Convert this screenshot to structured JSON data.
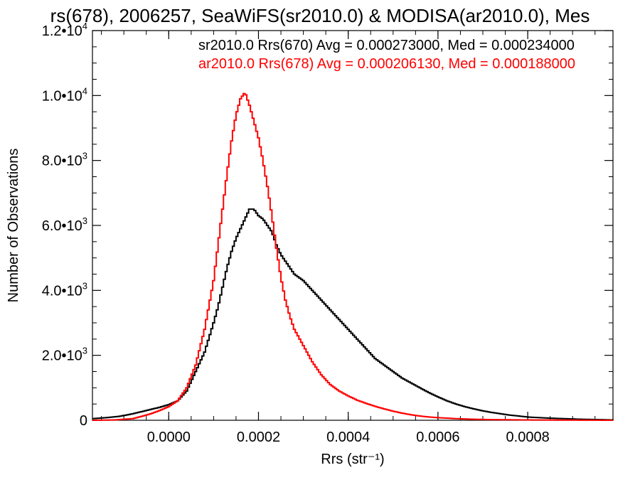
{
  "chart_data": {
    "type": "line",
    "title": "rs(678), 2006257, SeaWiFS(sr2010.0) & MODISA(ar2010.0), Mes",
    "xlabel": "Rrs (str⁻¹)",
    "ylabel": "Number of Observations",
    "xlim": [
      -0.00017,
      0.00099
    ],
    "ylim": [
      0,
      12000
    ],
    "x_ticks": [
      {
        "value": 0.0,
        "label": "0.0000"
      },
      {
        "value": 0.0002,
        "label": "0.0002"
      },
      {
        "value": 0.0004,
        "label": "0.0004"
      },
      {
        "value": 0.0006,
        "label": "0.0006"
      },
      {
        "value": 0.0008,
        "label": "0.0008"
      }
    ],
    "y_ticks": [
      {
        "value": 0,
        "mantissa": "0",
        "exp": ""
      },
      {
        "value": 2000,
        "mantissa": "2.0•10",
        "exp": "3"
      },
      {
        "value": 4000,
        "mantissa": "4.0•10",
        "exp": "3"
      },
      {
        "value": 6000,
        "mantissa": "6.0•10",
        "exp": "3"
      },
      {
        "value": 8000,
        "mantissa": "8.0•10",
        "exp": "3"
      },
      {
        "value": 10000,
        "mantissa": "1.0•10",
        "exp": "4"
      },
      {
        "value": 12000,
        "mantissa": "1.2•10",
        "exp": "4"
      }
    ],
    "legend": [
      {
        "text": "sr2010.0 Rrs(670) Avg = 0.000273000, Med = 0.000234000",
        "color": "#000000"
      },
      {
        "text": "ar2010.0 Rrs(678) Avg = 0.000206130, Med = 0.000188000",
        "color": "#ff0000"
      }
    ],
    "legend_placement": "top-right",
    "series": [
      {
        "color": "#000000",
        "style": "step",
        "points": [
          [
            -0.00017,
            50
          ],
          [
            -0.00014,
            80
          ],
          [
            -0.00011,
            120
          ],
          [
            -8e-05,
            200
          ],
          [
            -5e-05,
            300
          ],
          [
            -2e-05,
            400
          ],
          [
            0.0,
            480
          ],
          [
            2e-05,
            600
          ],
          [
            4e-05,
            900
          ],
          [
            6e-05,
            1500
          ],
          [
            8e-05,
            2100
          ],
          [
            0.0001,
            3000
          ],
          [
            0.00011,
            3500
          ],
          [
            0.00012,
            4100
          ],
          [
            0.00013,
            4700
          ],
          [
            0.00014,
            5200
          ],
          [
            0.00015,
            5600
          ],
          [
            0.00016,
            5900
          ],
          [
            0.00017,
            6200
          ],
          [
            0.00018,
            6500
          ],
          [
            0.00019,
            6500
          ],
          [
            0.0002,
            6300
          ],
          [
            0.00021,
            6200
          ],
          [
            0.00022,
            6000
          ],
          [
            0.00023,
            5800
          ],
          [
            0.00024,
            5400
          ],
          [
            0.00025,
            5100
          ],
          [
            0.00026,
            4900
          ],
          [
            0.00027,
            4700
          ],
          [
            0.00028,
            4500
          ],
          [
            0.0003,
            4300
          ],
          [
            0.00032,
            4000
          ],
          [
            0.00034,
            3700
          ],
          [
            0.00036,
            3400
          ],
          [
            0.00038,
            3100
          ],
          [
            0.0004,
            2800
          ],
          [
            0.00042,
            2500
          ],
          [
            0.00044,
            2200
          ],
          [
            0.00046,
            1900
          ],
          [
            0.00048,
            1700
          ],
          [
            0.0005,
            1500
          ],
          [
            0.00052,
            1300
          ],
          [
            0.00054,
            1150
          ],
          [
            0.00056,
            1000
          ],
          [
            0.00058,
            850
          ],
          [
            0.0006,
            720
          ],
          [
            0.00062,
            600
          ],
          [
            0.00064,
            500
          ],
          [
            0.00066,
            420
          ],
          [
            0.00068,
            350
          ],
          [
            0.0007,
            290
          ],
          [
            0.00072,
            240
          ],
          [
            0.00074,
            200
          ],
          [
            0.00076,
            160
          ],
          [
            0.00078,
            130
          ],
          [
            0.0008,
            100
          ],
          [
            0.00084,
            70
          ],
          [
            0.00088,
            50
          ],
          [
            0.00092,
            30
          ],
          [
            0.00096,
            20
          ],
          [
            0.00099,
            10
          ]
        ]
      },
      {
        "color": "#ff0000",
        "style": "step",
        "points": [
          [
            -0.00017,
            0
          ],
          [
            -0.00012,
            10
          ],
          [
            -8e-05,
            50
          ],
          [
            -6e-05,
            120
          ],
          [
            -4e-05,
            200
          ],
          [
            -2e-05,
            300
          ],
          [
            0.0,
            420
          ],
          [
            2e-05,
            600
          ],
          [
            4e-05,
            1000
          ],
          [
            6e-05,
            1700
          ],
          [
            8e-05,
            2800
          ],
          [
            0.0001,
            4300
          ],
          [
            0.00011,
            5400
          ],
          [
            0.00012,
            6500
          ],
          [
            0.00013,
            7600
          ],
          [
            0.00014,
            8600
          ],
          [
            0.00015,
            9400
          ],
          [
            0.00016,
            9900
          ],
          [
            0.00017,
            10100
          ],
          [
            0.00018,
            9700
          ],
          [
            0.00019,
            9200
          ],
          [
            0.0002,
            8700
          ],
          [
            0.00021,
            8000
          ],
          [
            0.00022,
            7200
          ],
          [
            0.00023,
            6300
          ],
          [
            0.00024,
            5300
          ],
          [
            0.00025,
            4400
          ],
          [
            0.00026,
            3700
          ],
          [
            0.00027,
            3200
          ],
          [
            0.00028,
            2800
          ],
          [
            0.0003,
            2300
          ],
          [
            0.00032,
            1800
          ],
          [
            0.00034,
            1400
          ],
          [
            0.00036,
            1100
          ],
          [
            0.00038,
            900
          ],
          [
            0.0004,
            750
          ],
          [
            0.00042,
            620
          ],
          [
            0.00044,
            520
          ],
          [
            0.00046,
            430
          ],
          [
            0.00048,
            350
          ],
          [
            0.0005,
            280
          ],
          [
            0.00052,
            220
          ],
          [
            0.00054,
            170
          ],
          [
            0.00056,
            130
          ],
          [
            0.00058,
            100
          ],
          [
            0.0006,
            80
          ],
          [
            0.00064,
            50
          ],
          [
            0.00068,
            30
          ],
          [
            0.00072,
            20
          ],
          [
            0.0008,
            10
          ],
          [
            0.00099,
            0
          ]
        ]
      }
    ]
  }
}
